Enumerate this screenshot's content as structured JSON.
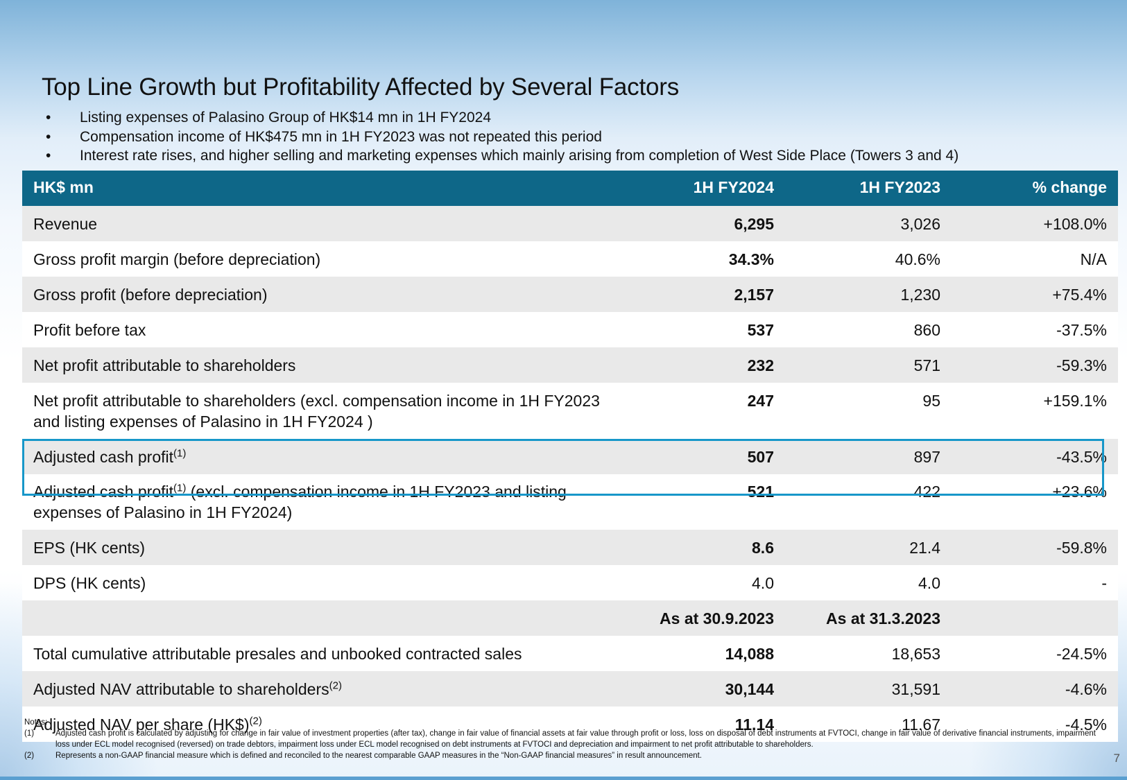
{
  "title": "Top Line Growth but Profitability Affected by Several Factors",
  "bullets": [
    "Listing expenses of Palasino Group of HK$14 mn in 1H FY2024",
    "Compensation income of HK$475 mn in 1H FY2023 was not repeated this period",
    "Interest rate rises, and higher selling and marketing expenses which mainly arising from completion of West Side Place (Towers 3 and 4)"
  ],
  "bullet_glyph": "•",
  "table": {
    "headers": [
      "HK$ mn",
      "1H FY2024",
      "1H FY2023",
      "% change"
    ],
    "rows": [
      {
        "label": "Revenue",
        "sup": "",
        "label_tail": "",
        "fy2024": "6,295",
        "fy2023": "3,026",
        "change": "+108.0%"
      },
      {
        "label": "Gross profit margin (before depreciation)",
        "sup": "",
        "label_tail": "",
        "fy2024": "34.3%",
        "fy2023": "40.6%",
        "change": "N/A"
      },
      {
        "label": "Gross profit (before depreciation)",
        "sup": "",
        "label_tail": "",
        "fy2024": "2,157",
        "fy2023": "1,230",
        "change": "+75.4%"
      },
      {
        "label": "Profit before tax",
        "sup": "",
        "label_tail": "",
        "fy2024": "537",
        "fy2023": "860",
        "change": "-37.5%"
      },
      {
        "label": "Net profit attributable to shareholders",
        "sup": "",
        "label_tail": "",
        "fy2024": "232",
        "fy2023": "571",
        "change": "-59.3%"
      },
      {
        "label": "Net profit attributable to shareholders (excl. compensation income in 1H FY2023 and listing expenses of Palasino in 1H FY2024 )",
        "sup": "",
        "label_tail": "",
        "fy2024": "247",
        "fy2023": "95",
        "change": "+159.1%"
      },
      {
        "label": "Adjusted cash profit",
        "sup": "(1)",
        "label_tail": "",
        "fy2024": "507",
        "fy2023": "897",
        "change": "-43.5%"
      },
      {
        "label": "Adjusted cash profit",
        "sup": "(1)",
        "label_tail": " (excl. compensation income in 1H FY2023 and listing expenses of Palasino in 1H FY2024)",
        "fy2024": "521",
        "fy2023": "422",
        "change": "+23.6%"
      },
      {
        "label": "EPS (HK cents)",
        "sup": "",
        "label_tail": "",
        "fy2024": "8.6",
        "fy2023": "21.4",
        "change": "-59.8%"
      },
      {
        "label": "DPS (HK cents)",
        "sup": "",
        "label_tail": "",
        "fy2024": "4.0",
        "fy2023": "4.0",
        "change": "-"
      }
    ],
    "sub_headers": [
      "",
      "As at 30.9.2023",
      "As at 31.3.2023",
      ""
    ],
    "rows2": [
      {
        "label": "Total cumulative attributable presales and unbooked contracted sales",
        "sup": "",
        "fy2024": "14,088",
        "fy2023": "18,653",
        "change": "-24.5%"
      },
      {
        "label": "Adjusted NAV attributable to shareholders",
        "sup": "(2)",
        "fy2024": "30,144",
        "fy2023": "31,591",
        "change": "-4.6%"
      },
      {
        "label": "Adjusted NAV per share (HK$)",
        "sup": "(2)",
        "fy2024": "11.14",
        "fy2023": "11.67",
        "change": "-4.5%"
      }
    ]
  },
  "notes": {
    "header": "Notes:",
    "items": [
      {
        "num": "(1)",
        "text": "Adjusted cash profit is calculated by adjusting for change in fair value of investment properties (after tax), change in fair value of financial assets at fair value through profit or loss, loss on disposal of debt instruments at FVTOCI, change in fair value of derivative financial instruments, impairment loss under ECL model recognised (reversed) on trade debtors, impairment loss under ECL model recognised on debt instruments at FVTOCI and depreciation and impairment to net profit attributable to shareholders."
      },
      {
        "num": "(2)",
        "text": "Represents a non-GAAP financial measure which is defined and reconciled to the nearest comparable GAAP measures in the “Non-GAAP financial measures” in result announcement."
      }
    ]
  },
  "page_number": "7",
  "colors": {
    "header_bg": "#0e6788",
    "highlight_border": "#1797c9",
    "stripe": "#e9e9e9"
  }
}
